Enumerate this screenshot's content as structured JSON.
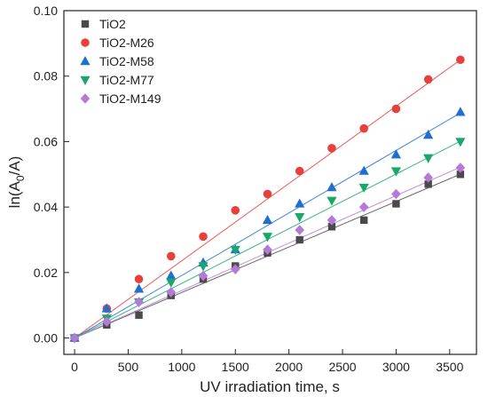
{
  "chart_data": {
    "type": "scatter",
    "xlabel": "UV irradiation time, s",
    "ylabel_main": "ln(A",
    "ylabel_sub": "0",
    "ylabel_tail": "/A)",
    "xlim": [
      -100,
      3750
    ],
    "ylim": [
      -0.005,
      0.1
    ],
    "xticks": [
      0,
      500,
      1000,
      1500,
      2000,
      2500,
      3000,
      3500
    ],
    "yticks": [
      0.0,
      0.02,
      0.04,
      0.06,
      0.08,
      0.1
    ],
    "xtick_labels": [
      "0",
      "500",
      "1000",
      "1500",
      "2000",
      "2500",
      "3000",
      "3500"
    ],
    "ytick_labels": [
      "0.00",
      "0.02",
      "0.04",
      "0.06",
      "0.08",
      "0.10"
    ],
    "legend_position": "top-left",
    "series": [
      {
        "name": "TiO2",
        "color": "#4a4a4a",
        "marker": "square",
        "x": [
          0,
          300,
          600,
          900,
          1200,
          1500,
          1800,
          2100,
          2400,
          2700,
          3000,
          3300,
          3600
        ],
        "y": [
          0.0,
          0.004,
          0.007,
          0.013,
          0.018,
          0.022,
          0.026,
          0.03,
          0.034,
          0.036,
          0.041,
          0.047,
          0.05
        ],
        "fit_slope": 1.39e-05
      },
      {
        "name": "TiO2-M26",
        "color": "#e8403c",
        "marker": "circle",
        "x": [
          0,
          300,
          600,
          900,
          1200,
          1500,
          1800,
          2100,
          2400,
          2700,
          3000,
          3300,
          3600
        ],
        "y": [
          0.0,
          0.009,
          0.018,
          0.025,
          0.031,
          0.039,
          0.044,
          0.051,
          0.058,
          0.064,
          0.07,
          0.079,
          0.085
        ],
        "fit_slope": 2.36e-05
      },
      {
        "name": "TiO2-M58",
        "color": "#1f6fd0",
        "marker": "triangle-up",
        "x": [
          0,
          300,
          600,
          900,
          1200,
          1500,
          1800,
          2100,
          2400,
          2700,
          3000,
          3300,
          3600
        ],
        "y": [
          0.0,
          0.009,
          0.015,
          0.019,
          0.023,
          0.027,
          0.036,
          0.041,
          0.046,
          0.051,
          0.056,
          0.062,
          0.069
        ],
        "fit_slope": 1.91e-05
      },
      {
        "name": "TiO2-M77",
        "color": "#1aa86a",
        "marker": "triangle-down",
        "x": [
          0,
          300,
          600,
          900,
          1200,
          1500,
          1800,
          2100,
          2400,
          2700,
          3000,
          3300,
          3600
        ],
        "y": [
          0.0,
          0.006,
          0.011,
          0.017,
          0.022,
          0.027,
          0.031,
          0.037,
          0.042,
          0.046,
          0.051,
          0.055,
          0.06
        ],
        "fit_slope": 1.67e-05
      },
      {
        "name": "TiO2-M149",
        "color": "#b57ad8",
        "marker": "diamond",
        "x": [
          0,
          300,
          600,
          900,
          1200,
          1500,
          1800,
          2100,
          2400,
          2700,
          3000,
          3300,
          3600
        ],
        "y": [
          0.0,
          0.005,
          0.011,
          0.014,
          0.019,
          0.021,
          0.027,
          0.033,
          0.036,
          0.04,
          0.044,
          0.049,
          0.052
        ],
        "fit_slope": 1.45e-05
      }
    ]
  }
}
